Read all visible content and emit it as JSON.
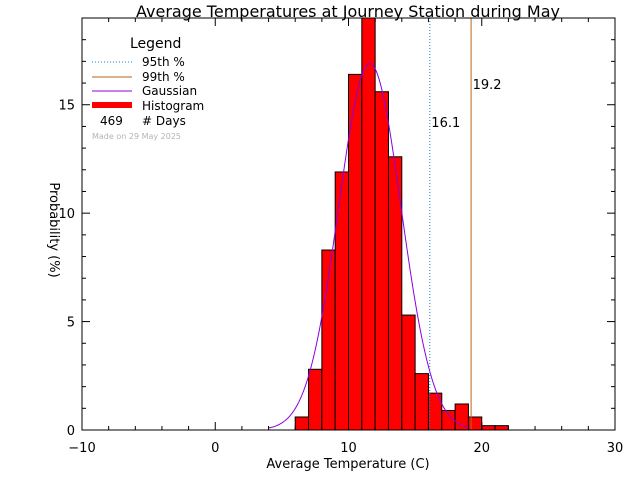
{
  "chart_data": {
    "type": "bar",
    "title": "Average Temperatures at Journey Station during May",
    "xlabel": "Average Temperature (C)",
    "ylabel": "Probability (%)",
    "xlim": [
      -10,
      30
    ],
    "ylim": [
      0,
      19
    ],
    "x_ticks": [
      "−10",
      "0",
      "10",
      "20",
      "30"
    ],
    "x_tick_values": [
      -10,
      0,
      10,
      20,
      30
    ],
    "y_ticks": [
      "0",
      "5",
      "10",
      "15"
    ],
    "y_tick_values": [
      0,
      5,
      10,
      15
    ],
    "bin_width": 1,
    "bins": [
      {
        "x0": 6,
        "value": 0.6
      },
      {
        "x0": 7,
        "value": 2.8
      },
      {
        "x0": 8,
        "value": 8.3
      },
      {
        "x0": 9,
        "value": 11.9
      },
      {
        "x0": 10,
        "value": 16.4
      },
      {
        "x0": 11,
        "value": 19.0
      },
      {
        "x0": 12,
        "value": 15.6
      },
      {
        "x0": 13,
        "value": 12.6
      },
      {
        "x0": 14,
        "value": 5.3
      },
      {
        "x0": 15,
        "value": 2.6
      },
      {
        "x0": 16,
        "value": 1.7
      },
      {
        "x0": 17,
        "value": 0.9
      },
      {
        "x0": 18,
        "value": 1.2
      },
      {
        "x0": 19,
        "value": 0.6
      },
      {
        "x0": 20,
        "value": 0.2
      },
      {
        "x0": 21,
        "value": 0.2
      }
    ],
    "gaussian": {
      "mean": 11.6,
      "sigma": 2.35,
      "peak": 16.9,
      "x_start": 4,
      "x_end": 19
    },
    "percentile_95": {
      "label": "95th %",
      "value": 16.1,
      "value_label": "16.1",
      "color": "#1e7fd0"
    },
    "percentile_99": {
      "label": "99th %",
      "value": 19.2,
      "value_label": "19.2",
      "color": "#b8651e"
    },
    "legend": {
      "title": "Legend",
      "p95": "95th %",
      "p99": "99th %",
      "gaussian": "Gaussian",
      "histogram": "Histogram",
      "days_count": "469",
      "days_label": "# Days",
      "made_on": "Made on 29 May 2025"
    },
    "colors": {
      "histogram": "#ff0000",
      "gaussian": "#8a00e0",
      "p95": "#1e7fd0",
      "p99": "#b8651e",
      "axes": "#000000",
      "made_on": "#b4b4b4"
    }
  }
}
